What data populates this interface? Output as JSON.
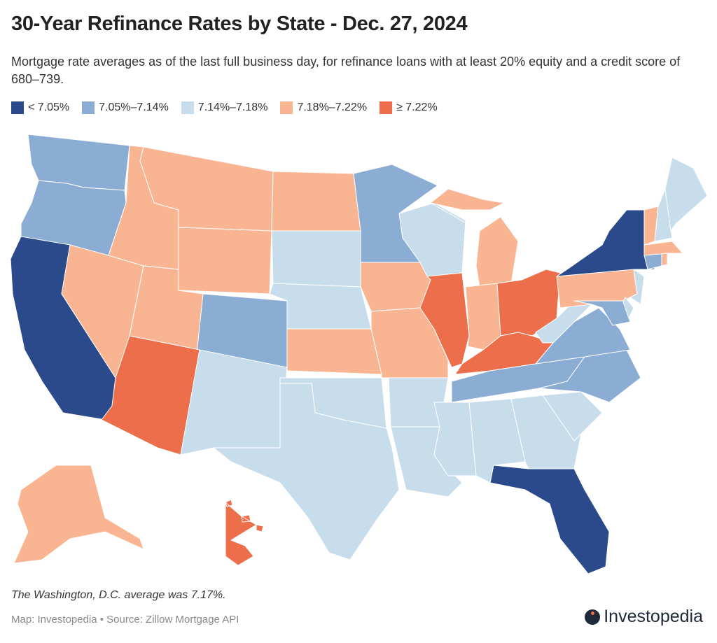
{
  "title": "30-Year Refinance Rates by State - Dec. 27, 2024",
  "subtitle": "Mortgage rate averages as of the last full business day, for refinance loans with at least 20% equity and a credit score of 680–739.",
  "legend": [
    {
      "label": "< 7.05%",
      "color": "#2b4a8b"
    },
    {
      "label": "7.05%–7.14%",
      "color": "#8badd4"
    },
    {
      "label": "7.14%–7.18%",
      "color": "#c7ddec"
    },
    {
      "label": "7.18%–7.22%",
      "color": "#f9b591"
    },
    {
      "label": "≥ 7.22%",
      "color": "#ec6e4a"
    }
  ],
  "state_rate_bins": {
    "CA": 0,
    "NY": 0,
    "FL": 0,
    "WA": 1,
    "OR": 1,
    "MN": 1,
    "CO": 1,
    "TN": 1,
    "NC": 1,
    "VA": 1,
    "MD": 1,
    "CT": 1,
    "SD": 2,
    "NE": 2,
    "WI": 2,
    "NM": 2,
    "OK": 2,
    "TX": 2,
    "AR": 2,
    "LA": 2,
    "MS": 2,
    "AL": 2,
    "GA": 2,
    "SC": 2,
    "WV": 2,
    "NJ": 2,
    "DE": 2,
    "ME": 2,
    "NH": 2,
    "ID": 3,
    "MT": 3,
    "WY": 3,
    "ND": 3,
    "NV": 3,
    "UT": 3,
    "KS": 3,
    "IA": 3,
    "MO": 3,
    "MI": 3,
    "IN": 3,
    "PA": 3,
    "VT": 3,
    "MA": 3,
    "AK": 3,
    "RI": 3,
    "AZ": 4,
    "IL": 4,
    "OH": 4,
    "KY": 4,
    "HI": 4
  },
  "note": "The Washington, D.C. average was 7.17%.",
  "source": "Map: Investopedia • Source: Zillow Mortgage API",
  "logo": "Investopedia"
}
